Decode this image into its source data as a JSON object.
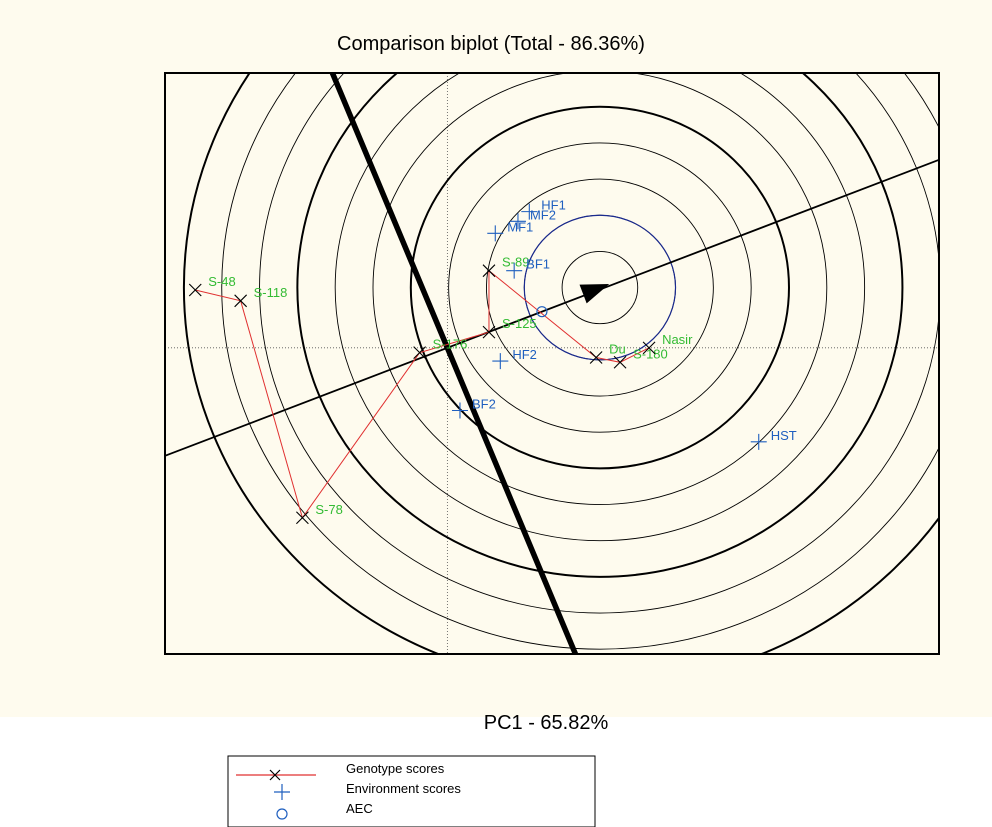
{
  "chart_data": {
    "type": "scatter",
    "title": "Comparison biplot (Total - 86.36%)",
    "xlabel": "PC1 - 65.82%",
    "ylabel": "",
    "xlim": [
      -2.24,
      3.9
    ],
    "ylim": [
      -2.54,
      2.28
    ],
    "grid": false,
    "legend_position": "bottom",
    "genotypes": [
      {
        "label": "S-48",
        "x": -2.0,
        "y": 0.48
      },
      {
        "label": "S-118",
        "x": -1.64,
        "y": 0.39
      },
      {
        "label": "S-78",
        "x": -1.15,
        "y": -1.41
      },
      {
        "label": "S-176",
        "x": -0.22,
        "y": -0.04
      },
      {
        "label": "S-125",
        "x": 0.33,
        "y": 0.13
      },
      {
        "label": "S-89",
        "x": 0.33,
        "y": 0.64
      },
      {
        "label": "Du",
        "x": 1.18,
        "y": -0.08
      },
      {
        "label": "S-180",
        "x": 1.37,
        "y": -0.12
      },
      {
        "label": "Nasir",
        "x": 1.6,
        "y": 0.0
      }
    ],
    "environments": [
      {
        "label": "HF1",
        "x": 0.65,
        "y": 1.13
      },
      {
        "label": "MF2",
        "x": 0.56,
        "y": 1.05
      },
      {
        "label": "MF1",
        "x": 0.38,
        "y": 0.95
      },
      {
        "label": "BF1",
        "x": 0.53,
        "y": 0.64
      },
      {
        "label": "HF2",
        "x": 0.42,
        "y": -0.11
      },
      {
        "label": "BF2",
        "x": 0.1,
        "y": -0.52
      },
      {
        "label": "HST",
        "x": 2.47,
        "y": -0.78
      }
    ],
    "aec_point": {
      "x": 0.75,
      "y": 0.3
    },
    "ideal_point": {
      "x": 1.21,
      "y": 0.5
    },
    "genotype_path": [
      "S-48",
      "S-118",
      "S-78",
      "S-176",
      "S-125",
      "S-89",
      "Du",
      "S-180",
      "Nasir"
    ],
    "ring_radii": [
      0.3,
      0.6,
      0.9,
      1.2,
      1.5,
      1.8,
      2.1,
      2.4,
      2.7,
      3.0,
      3.3
    ],
    "bold_ring_radii": [
      1.5,
      2.4,
      3.3
    ],
    "inner_blue_ring_radius": 0.6,
    "colors": {
      "background": "#fefbee",
      "genotype_line": "#e03030",
      "genotype_label": "#33bb33",
      "environment_label": "#1f5fbf",
      "environment_marker": "#1f5fbf",
      "rings": "#000000",
      "inner_ring": "#1a2a8f"
    }
  },
  "legend": {
    "genotype": "Genotype scores",
    "environment": "Environment scores",
    "aec": "AEC"
  }
}
